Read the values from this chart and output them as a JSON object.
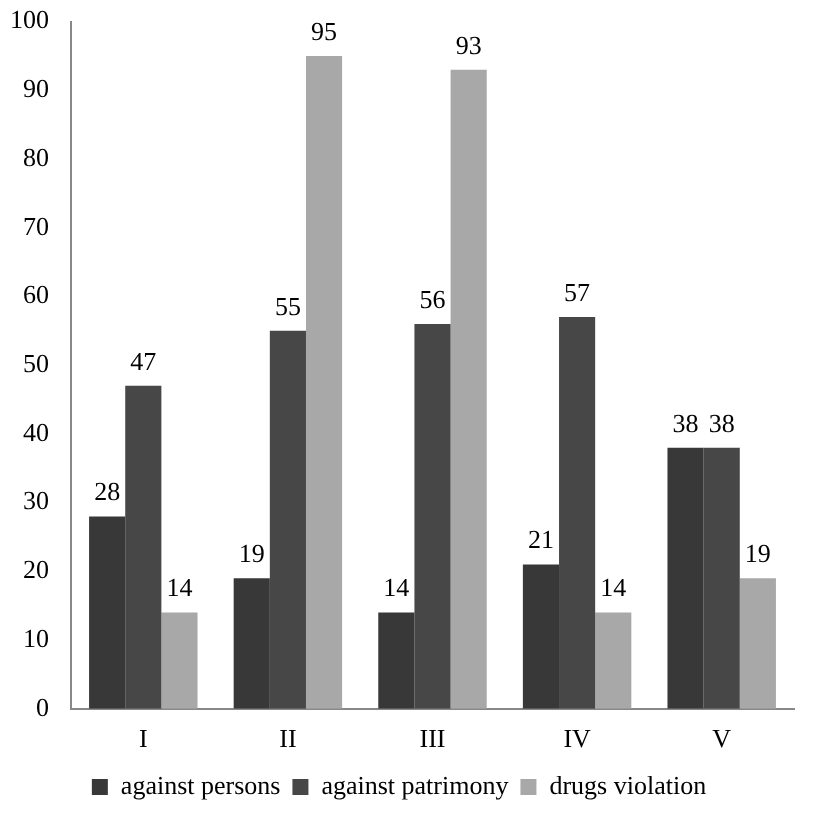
{
  "chart_data": {
    "type": "bar",
    "categories": [
      "I",
      "II",
      "III",
      "IV",
      "V"
    ],
    "series": [
      {
        "name": "against persons",
        "color": "#383838",
        "values": [
          28,
          19,
          14,
          21,
          38
        ]
      },
      {
        "name": "against patrimony",
        "color": "#474747",
        "values": [
          47,
          55,
          56,
          57,
          38
        ]
      },
      {
        "name": "drugs violation",
        "color": "#a8a8a8",
        "values": [
          14,
          95,
          93,
          14,
          19
        ]
      }
    ],
    "ylim": [
      0,
      100
    ],
    "yticks": [
      0,
      10,
      20,
      30,
      40,
      50,
      60,
      70,
      80,
      90,
      100
    ],
    "grid": false,
    "legend": "bottom",
    "data_labels": true
  }
}
